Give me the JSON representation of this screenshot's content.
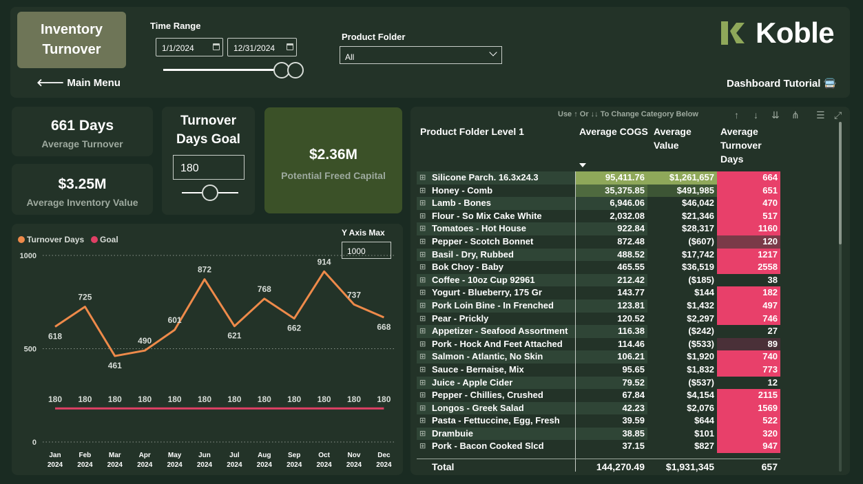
{
  "header": {
    "title_line1": "Inventory",
    "title_line2": "Turnover",
    "main_menu": "🡐 Main Menu",
    "time_range_label": "Time Range",
    "start_date": "1/1/2024",
    "end_date": "12/31/2024",
    "product_folder_label": "Product Folder",
    "product_folder_value": "All",
    "logo_text": "Koble",
    "tutorial": "Dashboard Tutorial 🚍"
  },
  "colors": {
    "accent_green": "#8fa85a",
    "goal_red": "#e04065",
    "line_orange": "#ee8a4a",
    "highlight_pink": "#e8406a"
  },
  "kpis": {
    "avg_turnover_value": "661 Days",
    "avg_turnover_label": "Average Turnover",
    "avg_inventory_value": "$3.25M",
    "avg_inventory_label": "Average Inventory Value",
    "goal_title_line1": "Turnover",
    "goal_title_line2": "Days Goal",
    "goal_value": "180",
    "freed_value": "$2.36M",
    "freed_label": "Potential Freed Capital"
  },
  "chart": {
    "y_axis_max_label": "Y Axis Max",
    "y_axis_max_value": "1000"
  },
  "chart_data": {
    "type": "line",
    "categories": [
      "Jan 2024",
      "Feb 2024",
      "Mar 2024",
      "Apr 2024",
      "May 2024",
      "Jun 2024",
      "Jul 2024",
      "Aug 2024",
      "Sep 2024",
      "Oct 2024",
      "Nov 2024",
      "Dec 2024"
    ],
    "category_lines": [
      [
        "Jan",
        "2024"
      ],
      [
        "Feb",
        "2024"
      ],
      [
        "Mar",
        "2024"
      ],
      [
        "Apr",
        "2024"
      ],
      [
        "May",
        "2024"
      ],
      [
        "Jun",
        "2024"
      ],
      [
        "Jul",
        "2024"
      ],
      [
        "Aug",
        "2024"
      ],
      [
        "Sep",
        "2024"
      ],
      [
        "Oct",
        "2024"
      ],
      [
        "Nov",
        "2024"
      ],
      [
        "Dec",
        "2024"
      ]
    ],
    "series": [
      {
        "name": "Turnover Days",
        "color": "#ee8a4a",
        "values": [
          618,
          725,
          461,
          490,
          601,
          872,
          621,
          768,
          662,
          914,
          737,
          668
        ]
      },
      {
        "name": "Goal",
        "color": "#e04065",
        "values": [
          180,
          180,
          180,
          180,
          180,
          180,
          180,
          180,
          180,
          180,
          180,
          180
        ]
      }
    ],
    "yticks": [
      0,
      500,
      1000
    ],
    "ylim": [
      0,
      1000
    ],
    "legend_position": "top-left",
    "grid": "dotted horizontal"
  },
  "table": {
    "hint": "Use ↑ Or ↓↓ To Change Category Below",
    "headers": {
      "name": "Product Folder Level 1",
      "cogs": "Average COGS",
      "value_line1": "Average",
      "value_line2": "Value",
      "days_line1": "Average",
      "days_line2": "Turnover",
      "days_line3": "Days"
    },
    "rows": [
      {
        "name": "Silicone Parch. 16.3x24.3",
        "cogs": "95,411.76",
        "value": "$1,261,657",
        "days": "664",
        "cogs_bg": "#8fa85a",
        "value_bg": "#8fa85a",
        "days_bg": "#e8406a"
      },
      {
        "name": "Honey - Comb",
        "cogs": "35,375.85",
        "value": "$491,985",
        "days": "651",
        "cogs_bg": "#4f6a3f",
        "value_bg": "#3d5535",
        "days_bg": "#e8406a"
      },
      {
        "name": "Lamb - Bones",
        "cogs": "6,946.06",
        "value": "$46,042",
        "days": "470",
        "cogs_bg": "",
        "value_bg": "",
        "days_bg": "#e8406a"
      },
      {
        "name": "Flour - So Mix Cake White",
        "cogs": "2,032.08",
        "value": "$21,346",
        "days": "517",
        "cogs_bg": "",
        "value_bg": "",
        "days_bg": "#e8406a"
      },
      {
        "name": "Tomatoes - Hot House",
        "cogs": "922.84",
        "value": "$28,317",
        "days": "1160",
        "cogs_bg": "",
        "value_bg": "",
        "days_bg": "#e8406a"
      },
      {
        "name": "Pepper - Scotch Bonnet",
        "cogs": "872.48",
        "value": "($607)",
        "days": "120",
        "cogs_bg": "",
        "value_bg": "",
        "days_bg": "#7a3a48"
      },
      {
        "name": "Basil - Dry, Rubbed",
        "cogs": "488.52",
        "value": "$17,742",
        "days": "1217",
        "cogs_bg": "",
        "value_bg": "",
        "days_bg": "#e8406a"
      },
      {
        "name": "Bok Choy - Baby",
        "cogs": "465.55",
        "value": "$36,519",
        "days": "2558",
        "cogs_bg": "",
        "value_bg": "",
        "days_bg": "#e8406a"
      },
      {
        "name": "Coffee - 10oz Cup 92961",
        "cogs": "212.42",
        "value": "($185)",
        "days": "38",
        "cogs_bg": "",
        "value_bg": "",
        "days_bg": ""
      },
      {
        "name": "Yogurt - Blueberry, 175 Gr",
        "cogs": "143.77",
        "value": "$144",
        "days": "182",
        "cogs_bg": "",
        "value_bg": "",
        "days_bg": "#e8406a"
      },
      {
        "name": "Pork Loin Bine - In Frenched",
        "cogs": "123.81",
        "value": "$1,432",
        "days": "497",
        "cogs_bg": "",
        "value_bg": "",
        "days_bg": "#e8406a"
      },
      {
        "name": "Pear - Prickly",
        "cogs": "120.52",
        "value": "$2,297",
        "days": "746",
        "cogs_bg": "",
        "value_bg": "",
        "days_bg": "#e8406a"
      },
      {
        "name": "Appetizer - Seafood Assortment",
        "cogs": "116.38",
        "value": "($242)",
        "days": "27",
        "cogs_bg": "",
        "value_bg": "",
        "days_bg": ""
      },
      {
        "name": "Pork - Hock And Feet Attached",
        "cogs": "114.46",
        "value": "($533)",
        "days": "89",
        "cogs_bg": "",
        "value_bg": "",
        "days_bg": "#4a3038"
      },
      {
        "name": "Salmon - Atlantic, No Skin",
        "cogs": "106.21",
        "value": "$1,920",
        "days": "740",
        "cogs_bg": "",
        "value_bg": "",
        "days_bg": "#e8406a"
      },
      {
        "name": "Sauce - Bernaise, Mix",
        "cogs": "95.65",
        "value": "$1,832",
        "days": "773",
        "cogs_bg": "",
        "value_bg": "",
        "days_bg": "#e8406a"
      },
      {
        "name": "Juice - Apple Cider",
        "cogs": "79.52",
        "value": "($537)",
        "days": "12",
        "cogs_bg": "",
        "value_bg": "",
        "days_bg": ""
      },
      {
        "name": "Pepper - Chillies, Crushed",
        "cogs": "67.84",
        "value": "$4,154",
        "days": "2115",
        "cogs_bg": "",
        "value_bg": "",
        "days_bg": "#e8406a"
      },
      {
        "name": "Longos - Greek Salad",
        "cogs": "42.23",
        "value": "$2,076",
        "days": "1569",
        "cogs_bg": "",
        "value_bg": "",
        "days_bg": "#e8406a"
      },
      {
        "name": "Pasta - Fettuccine, Egg, Fresh",
        "cogs": "39.59",
        "value": "$644",
        "days": "522",
        "cogs_bg": "",
        "value_bg": "",
        "days_bg": "#e8406a"
      },
      {
        "name": "Drambuie",
        "cogs": "38.85",
        "value": "$101",
        "days": "320",
        "cogs_bg": "",
        "value_bg": "",
        "days_bg": "#e8406a"
      },
      {
        "name": "Pork - Bacon Cooked Slcd",
        "cogs": "37.15",
        "value": "$827",
        "days": "947",
        "cogs_bg": "",
        "value_bg": "",
        "days_bg": "#e8406a"
      }
    ],
    "total": {
      "label": "Total",
      "cogs": "144,270.49",
      "value": "$1,931,345",
      "days": "657"
    }
  }
}
